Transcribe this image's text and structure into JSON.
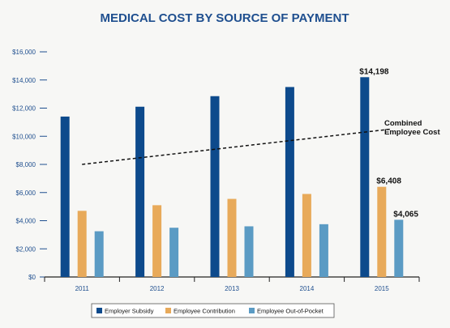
{
  "chart_data": {
    "type": "bar",
    "title": "MEDICAL COST BY SOURCE OF PAYMENT",
    "categories": [
      "2011",
      "2012",
      "2013",
      "2014",
      "2015"
    ],
    "series": [
      {
        "name": "Employer Subsidy",
        "color": "#0d4a8c",
        "values": [
          11400,
          12100,
          12850,
          13500,
          14198
        ]
      },
      {
        "name": "Employee Contribution",
        "color": "#e8aa5a",
        "values": [
          4700,
          5100,
          5550,
          5900,
          6408
        ]
      },
      {
        "name": "Employee Out-of-Pocket",
        "color": "#5b9bc4",
        "values": [
          3250,
          3500,
          3600,
          3750,
          4065
        ]
      }
    ],
    "ylim": [
      0,
      16000
    ],
    "yticks": [
      0,
      2000,
      4000,
      6000,
      8000,
      10000,
      12000,
      14000,
      16000
    ],
    "ytick_labels": [
      "$0",
      "$2,000",
      "$4,000",
      "$6,000",
      "$8,000",
      "$10,000",
      "$12,000",
      "$14,000",
      "$16,000"
    ],
    "data_labels": [
      {
        "series": 0,
        "category": 4,
        "text": "$14,198"
      },
      {
        "series": 1,
        "category": 4,
        "text": "$6,408"
      },
      {
        "series": 2,
        "category": 4,
        "text": "$4,065"
      }
    ],
    "trend_line": {
      "style": "dashed",
      "start_value": 8000,
      "end_value": 10500
    },
    "annotation": [
      "Combined",
      "Employee Cost"
    ],
    "legend_position": "bottom",
    "grid": false
  }
}
